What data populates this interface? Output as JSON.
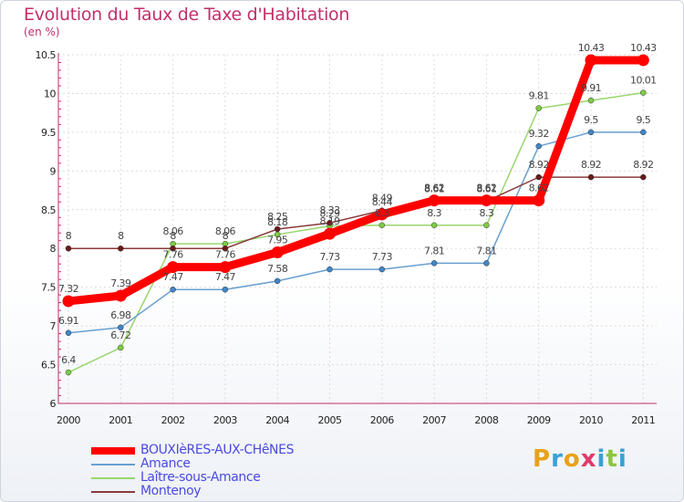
{
  "header": {
    "title": "Evolution du Taux de Taxe d'Habitation",
    "unit": "(en %)"
  },
  "logo": {
    "text": "Proxiti"
  },
  "chart_data": {
    "type": "line",
    "title": "Evolution du Taux de Taxe d'Habitation",
    "ylabel": "(en %)",
    "xlabel": "",
    "x": [
      "2000",
      "2001",
      "2002",
      "2003",
      "2004",
      "2005",
      "2006",
      "2007",
      "2008",
      "2009",
      "2010",
      "2011"
    ],
    "ylim": [
      6,
      10.5
    ],
    "yticks": [
      "6",
      "6.5",
      "7",
      "7.5",
      "8",
      "8.5",
      "9",
      "9.5",
      "10",
      "10.5"
    ],
    "grid": true,
    "legend_position": "bottom-left",
    "series": [
      {
        "name": "BOUXIèRES-AUX-CHêNES",
        "color": "#ff0000",
        "marker": "#ff0000",
        "values": [
          7.32,
          7.39,
          7.76,
          7.76,
          7.95,
          8.19,
          8.44,
          8.62,
          8.62,
          8.62,
          10.43,
          10.43
        ],
        "labels": [
          "7.32",
          "7.39",
          "7.76",
          "7.76",
          "7.95",
          "8.19",
          "8.44",
          "8.62",
          "8.62",
          "8.62",
          "10.43",
          "10.43"
        ]
      },
      {
        "name": "Amance",
        "color": "#6a9fd0",
        "marker": "#3f86c8",
        "values": [
          6.91,
          6.98,
          7.47,
          7.47,
          7.58,
          7.73,
          7.73,
          7.81,
          7.81,
          9.32,
          9.5,
          9.5
        ],
        "labels": [
          "6.91",
          "6.98",
          "7.47",
          "7.47",
          "7.58",
          "7.73",
          "7.73",
          "7.81",
          "7.81",
          "9.32",
          "9.5",
          "9.5"
        ]
      },
      {
        "name": "Laître-sous-Amance",
        "color": "#99d66f",
        "marker": "#7ccc44",
        "values": [
          6.4,
          6.72,
          8.06,
          8.06,
          8.18,
          8.29,
          8.3,
          8.3,
          8.3,
          9.81,
          9.91,
          10.01
        ],
        "labels": [
          "6.4",
          "6.72",
          "8.06",
          "8.06",
          "8.18",
          "8.29",
          "8.3",
          "8.3",
          "8.3",
          "9.81",
          "9.91",
          "10.01"
        ]
      },
      {
        "name": "Montenoy",
        "color": "#8a3a3a",
        "marker": "#6a1a1a",
        "values": [
          8,
          8,
          8,
          8,
          8.25,
          8.33,
          8.49,
          8.61,
          8.61,
          8.92,
          8.92,
          8.92
        ],
        "labels": [
          "8",
          "8",
          "8",
          "8",
          "8.25",
          "8.33",
          "8.49",
          "8.61",
          "8.61",
          "8.92",
          "8.92",
          "8.92"
        ]
      }
    ]
  }
}
